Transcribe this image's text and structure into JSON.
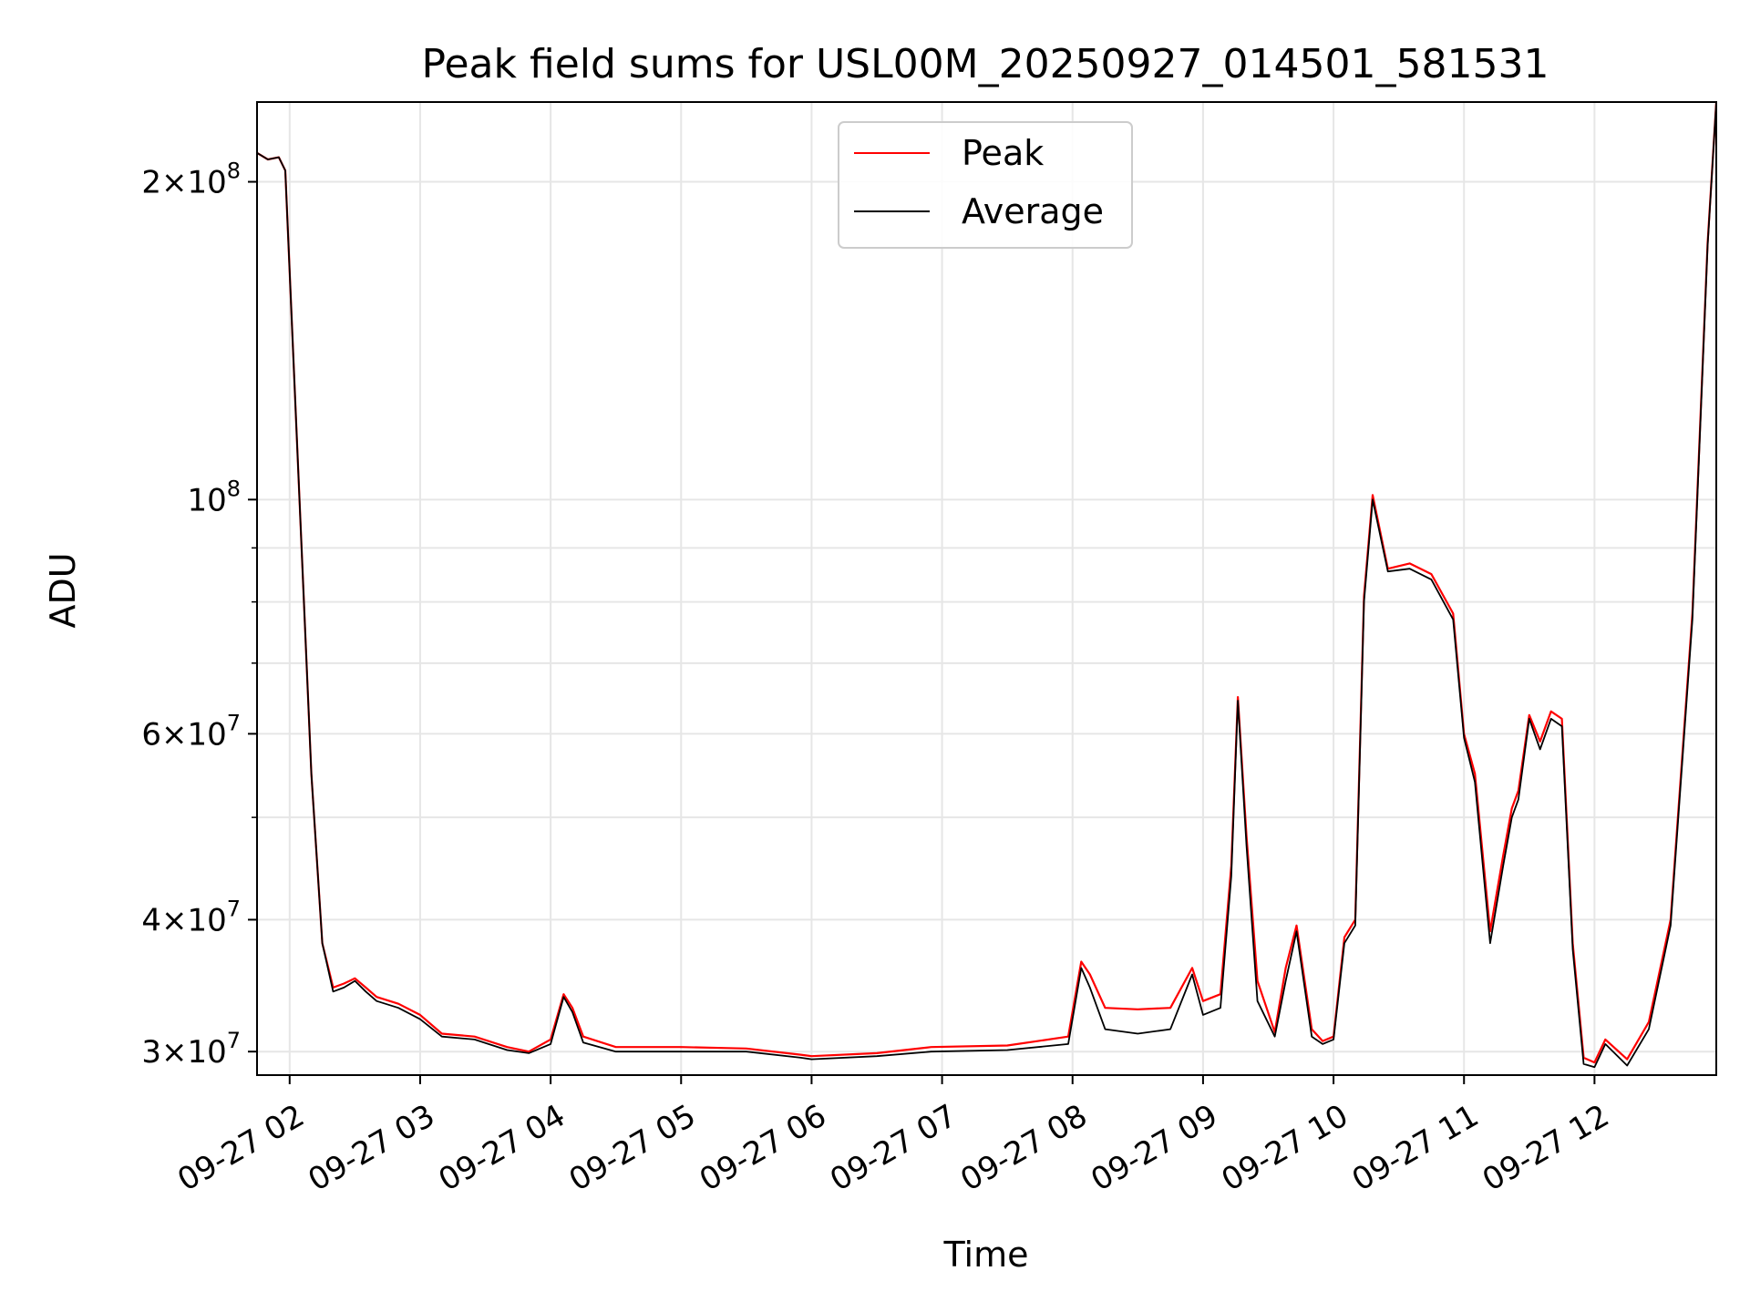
{
  "chart_data": {
    "type": "line",
    "title": "Peak field sums for USL00M_20250927_014501_581531",
    "xlabel": "Time",
    "ylabel": "ADU",
    "yscale": "log",
    "ylim": [
      28500000,
      238000000
    ],
    "xlim": [
      "2025-09-27 01:45",
      "2025-09-27 12:56"
    ],
    "grid": true,
    "legend_position": "top-center",
    "x_ticks": [
      "09-27 02",
      "09-27 03",
      "09-27 04",
      "09-27 05",
      "09-27 06",
      "09-27 07",
      "09-27 08",
      "09-27 09",
      "09-27 10",
      "09-27 11",
      "09-27 12"
    ],
    "x_tick_times": [
      "2025-09-27 02:00",
      "2025-09-27 03:00",
      "2025-09-27 04:00",
      "2025-09-27 05:00",
      "2025-09-27 06:00",
      "2025-09-27 07:00",
      "2025-09-27 08:00",
      "2025-09-27 09:00",
      "2025-09-27 10:00",
      "2025-09-27 11:00",
      "2025-09-27 12:00"
    ],
    "y_major_ticks": [
      {
        "value": 200000000,
        "mantissa": "2",
        "exp": "8"
      },
      {
        "value": 100000000,
        "mantissa": "",
        "exp": "8"
      },
      {
        "value": 60000000,
        "mantissa": "6",
        "exp": "7"
      },
      {
        "value": 40000000,
        "mantissa": "4",
        "exp": "7"
      },
      {
        "value": 30000000,
        "mantissa": "3",
        "exp": "7"
      }
    ],
    "y_minor_ticks": [
      50000000,
      70000000,
      80000000,
      90000000
    ],
    "colors": {
      "Peak": "#ff0000",
      "Average": "#000000"
    },
    "x": [
      "2025-09-27 01:45",
      "2025-09-27 01:50",
      "2025-09-27 01:55",
      "2025-09-27 01:58",
      "2025-09-27 02:05",
      "2025-09-27 02:10",
      "2025-09-27 02:15",
      "2025-09-27 02:20",
      "2025-09-27 02:25",
      "2025-09-27 02:30",
      "2025-09-27 02:35",
      "2025-09-27 02:40",
      "2025-09-27 02:50",
      "2025-09-27 03:00",
      "2025-09-27 03:10",
      "2025-09-27 03:25",
      "2025-09-27 03:40",
      "2025-09-27 03:50",
      "2025-09-27 04:00",
      "2025-09-27 04:06",
      "2025-09-27 04:10",
      "2025-09-27 04:15",
      "2025-09-27 04:30",
      "2025-09-27 05:00",
      "2025-09-27 05:30",
      "2025-09-27 05:55",
      "2025-09-27 06:00",
      "2025-09-27 06:30",
      "2025-09-27 06:55",
      "2025-09-27 07:30",
      "2025-09-27 07:58",
      "2025-09-27 08:04",
      "2025-09-27 08:08",
      "2025-09-27 08:15",
      "2025-09-27 08:30",
      "2025-09-27 08:45",
      "2025-09-27 08:55",
      "2025-09-27 09:00",
      "2025-09-27 09:08",
      "2025-09-27 09:13",
      "2025-09-27 09:16",
      "2025-09-27 09:20",
      "2025-09-27 09:25",
      "2025-09-27 09:33",
      "2025-09-27 09:38",
      "2025-09-27 09:43",
      "2025-09-27 09:50",
      "2025-09-27 09:55",
      "2025-09-27 10:00",
      "2025-09-27 10:05",
      "2025-09-27 10:10",
      "2025-09-27 10:14",
      "2025-09-27 10:18",
      "2025-09-27 10:25",
      "2025-09-27 10:35",
      "2025-09-27 10:45",
      "2025-09-27 10:55",
      "2025-09-27 11:00",
      "2025-09-27 11:05",
      "2025-09-27 11:12",
      "2025-09-27 11:18",
      "2025-09-27 11:22",
      "2025-09-27 11:25",
      "2025-09-27 11:30",
      "2025-09-27 11:35",
      "2025-09-27 11:40",
      "2025-09-27 11:45",
      "2025-09-27 11:50",
      "2025-09-27 11:55",
      "2025-09-27 12:00",
      "2025-09-27 12:05",
      "2025-09-27 12:15",
      "2025-09-27 12:25",
      "2025-09-27 12:35",
      "2025-09-27 12:45",
      "2025-09-27 12:52",
      "2025-09-27 12:56"
    ],
    "series": [
      {
        "name": "Peak",
        "values": [
          213000000,
          210000000,
          211000000,
          205000000,
          95000000,
          55000000,
          38000000,
          34500000,
          34800000,
          35200000,
          34500000,
          33800000,
          33300000,
          32500000,
          31200000,
          31000000,
          30300000,
          30000000,
          30800000,
          34000000,
          33000000,
          31000000,
          30300000,
          30300000,
          30200000,
          29800000,
          29700000,
          29900000,
          30300000,
          30400000,
          31000000,
          36500000,
          35500000,
          33000000,
          32900000,
          33000000,
          36000000,
          33500000,
          34000000,
          45000000,
          65000000,
          48000000,
          35000000,
          31300000,
          36000000,
          39500000,
          31500000,
          30700000,
          31000000,
          38500000,
          40000000,
          81000000,
          101000000,
          86000000,
          87000000,
          85000000,
          78000000,
          60000000,
          55000000,
          39000000,
          46000000,
          51000000,
          53000000,
          62500000,
          59000000,
          63000000,
          62000000,
          38000000,
          29600000,
          29300000,
          30800000,
          29500000,
          32000000,
          40000000,
          78000000,
          175000000,
          238000000
        ]
      },
      {
        "name": "Average",
        "values": [
          213000000,
          210000000,
          211000000,
          205000000,
          95000000,
          55000000,
          38000000,
          34200000,
          34500000,
          35000000,
          34200000,
          33500000,
          33000000,
          32200000,
          31000000,
          30800000,
          30100000,
          29900000,
          30500000,
          33800000,
          32700000,
          30600000,
          30000000,
          30000000,
          30000000,
          29600000,
          29500000,
          29700000,
          30000000,
          30100000,
          30500000,
          36000000,
          34500000,
          31500000,
          31200000,
          31500000,
          35500000,
          32500000,
          33000000,
          44000000,
          64500000,
          47000000,
          33500000,
          31000000,
          35000000,
          39000000,
          31000000,
          30500000,
          30800000,
          38000000,
          39500000,
          80000000,
          100000000,
          85500000,
          86000000,
          84000000,
          77000000,
          59500000,
          54000000,
          38000000,
          45000000,
          50000000,
          52000000,
          62000000,
          58000000,
          62000000,
          61000000,
          37500000,
          29200000,
          29000000,
          30500000,
          29100000,
          31500000,
          39500000,
          77000000,
          174000000,
          238000000
        ]
      }
    ]
  }
}
